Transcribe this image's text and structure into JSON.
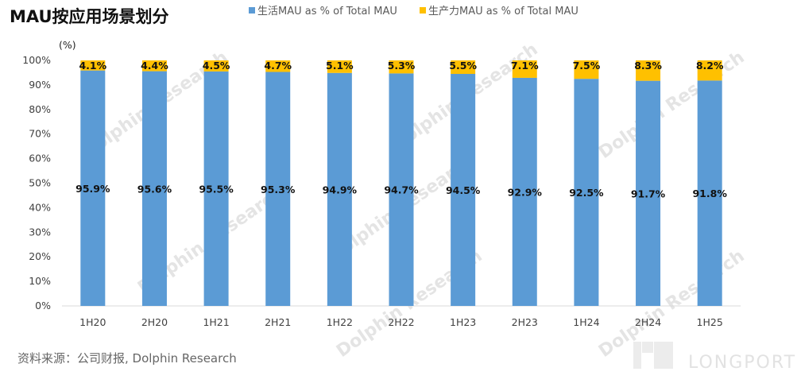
{
  "chart_data": {
    "type": "bar",
    "stacked": true,
    "title": "MAU按应用场景划分",
    "ylabel": "(%)",
    "ylim": [
      0,
      100
    ],
    "yticks": [
      "0%",
      "10%",
      "20%",
      "30%",
      "40%",
      "50%",
      "60%",
      "70%",
      "80%",
      "90%",
      "100%"
    ],
    "categories": [
      "1H20",
      "2H20",
      "1H21",
      "2H21",
      "1H22",
      "2H22",
      "1H23",
      "2H23",
      "1H24",
      "2H24",
      "1H25"
    ],
    "series": [
      {
        "name": "生活MAU as % of Total MAU",
        "color": "#5b9bd5",
        "values": [
          95.9,
          95.6,
          95.5,
          95.3,
          94.9,
          94.7,
          94.5,
          92.9,
          92.5,
          91.7,
          91.8
        ],
        "labels": [
          "95.9%",
          "95.6%",
          "95.5%",
          "95.3%",
          "94.9%",
          "94.7%",
          "94.5%",
          "92.9%",
          "92.5%",
          "91.7%",
          "91.8%"
        ]
      },
      {
        "name": "生产力MAU as % of Total MAU",
        "color": "#ffc000",
        "values": [
          4.1,
          4.4,
          4.5,
          4.7,
          5.1,
          5.3,
          5.5,
          7.1,
          7.5,
          8.3,
          8.2
        ],
        "labels": [
          "4.1%",
          "4.4%",
          "4.5%",
          "4.7%",
          "5.1%",
          "5.3%",
          "5.5%",
          "7.1%",
          "7.5%",
          "8.3%",
          "8.2%"
        ]
      }
    ],
    "legend": "top-center",
    "grid": false
  },
  "footer": {
    "source": "资料来源：公司财报, Dolphin Research"
  },
  "watermark": {
    "text": "Dolphin Research",
    "brand": "LONGPORT"
  }
}
